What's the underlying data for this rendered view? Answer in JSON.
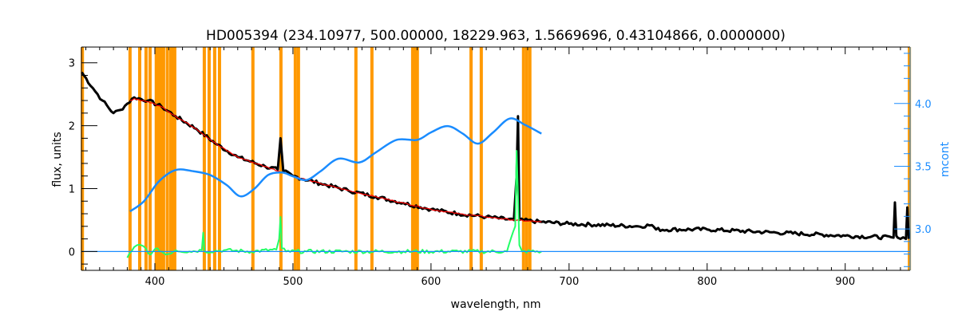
{
  "chart_data": {
    "type": "line",
    "title": "HD005394    (234.10977, 500.00000, 18229.963, 1.5669696, 0.43104866, 0.0000000)",
    "xlabel": "wavelength, nm",
    "ylabel": "flux, units",
    "y2label": "mcont",
    "xlim": [
      346.8,
      947
    ],
    "ylim": [
      -0.3,
      3.25
    ],
    "y2lim": [
      2.67,
      4.45
    ],
    "xticks": [
      400,
      500,
      600,
      700,
      800,
      900
    ],
    "yticks": [
      0,
      1,
      2,
      3
    ],
    "y2ticks": [
      "3.0",
      "3.5",
      "4.0"
    ],
    "colors": {
      "spectrum": "#000000",
      "model": "#ff0000",
      "mcont": "#1a8cff",
      "residual": "#22ff66",
      "mask": "#ff9900",
      "axis2": "#1a8cff"
    },
    "mask_lines_nm": [
      347.5,
      382,
      389,
      393.6,
      396.5,
      401,
      403,
      404.6,
      406.3,
      409,
      411.5,
      413.3,
      414.4,
      435.8,
      439.3,
      443.3,
      446.8,
      471,
      491.3,
      501.7,
      504,
      545.6,
      557.2,
      586.7,
      588.4,
      590.1,
      629,
      636.4,
      667,
      669.3,
      671.6,
      946.5
    ],
    "series": [
      {
        "name": "flux",
        "axis": "left",
        "x": [
          347,
          355,
          362,
          370,
          375,
          380,
          385,
          395,
          405,
          415,
          430,
          445,
          460,
          480,
          489,
          491,
          493,
          500,
          520,
          540,
          560,
          580,
          600,
          620,
          640,
          660,
          662,
          663,
          664,
          680,
          700,
          750,
          760,
          763,
          800,
          850,
          900,
          935,
          936,
          937,
          938,
          940,
          944,
          945,
          946
        ],
        "y": [
          2.85,
          2.6,
          2.4,
          2.2,
          2.25,
          2.35,
          2.45,
          2.4,
          2.3,
          2.15,
          1.95,
          1.7,
          1.5,
          1.35,
          1.3,
          1.8,
          1.28,
          1.2,
          1.08,
          0.97,
          0.87,
          0.77,
          0.67,
          0.6,
          0.55,
          0.5,
          1.2,
          2.15,
          0.5,
          0.47,
          0.44,
          0.4,
          0.42,
          0.35,
          0.35,
          0.3,
          0.25,
          0.22,
          0.78,
          0.25,
          0.22,
          0.2,
          0.2,
          0.7,
          0.2
        ]
      },
      {
        "name": "model",
        "axis": "left",
        "x": [
          382,
          385,
          395,
          405,
          415,
          430,
          445,
          460,
          480,
          500,
          520,
          540,
          560,
          580,
          600,
          620,
          640,
          660,
          680
        ],
        "y": [
          2.4,
          2.43,
          2.38,
          2.3,
          2.15,
          1.95,
          1.7,
          1.5,
          1.35,
          1.2,
          1.08,
          0.97,
          0.87,
          0.77,
          0.67,
          0.6,
          0.55,
          0.5,
          0.47
        ]
      },
      {
        "name": "mcont",
        "axis": "right",
        "x": [
          382,
          392,
          403,
          415,
          428,
          440,
          452,
          462,
          472,
          482,
          492,
          500,
          510,
          520,
          533,
          548,
          560,
          575,
          590,
          600,
          612,
          623,
          634,
          645,
          657,
          668,
          680
        ],
        "y": [
          3.14,
          3.22,
          3.38,
          3.47,
          3.46,
          3.43,
          3.35,
          3.26,
          3.32,
          3.43,
          3.45,
          3.42,
          3.39,
          3.46,
          3.56,
          3.53,
          3.61,
          3.71,
          3.71,
          3.77,
          3.82,
          3.76,
          3.68,
          3.77,
          3.88,
          3.83,
          3.76
        ]
      },
      {
        "name": "residual",
        "axis": "left",
        "x": [
          380,
          383,
          387,
          392,
          397,
          402,
          408,
          415,
          425,
          434,
          435,
          436,
          450,
          470,
          488,
          490,
          491,
          492,
          495,
          510,
          540,
          580,
          620,
          655,
          661,
          662,
          663,
          664,
          666,
          680
        ],
        "y": [
          -0.1,
          0.0,
          0.1,
          0.08,
          -0.05,
          0.05,
          -0.05,
          0.02,
          0.0,
          0.02,
          0.3,
          0.0,
          0.02,
          0.0,
          0.03,
          0.2,
          0.55,
          0.05,
          0.0,
          0.0,
          0.0,
          0.0,
          0.0,
          0.0,
          0.4,
          1.6,
          0.9,
          0.1,
          0.0,
          0.0
        ]
      },
      {
        "name": "zero-line",
        "axis": "left",
        "x": [
          346.8,
          947
        ],
        "y": [
          0,
          0
        ]
      }
    ]
  }
}
